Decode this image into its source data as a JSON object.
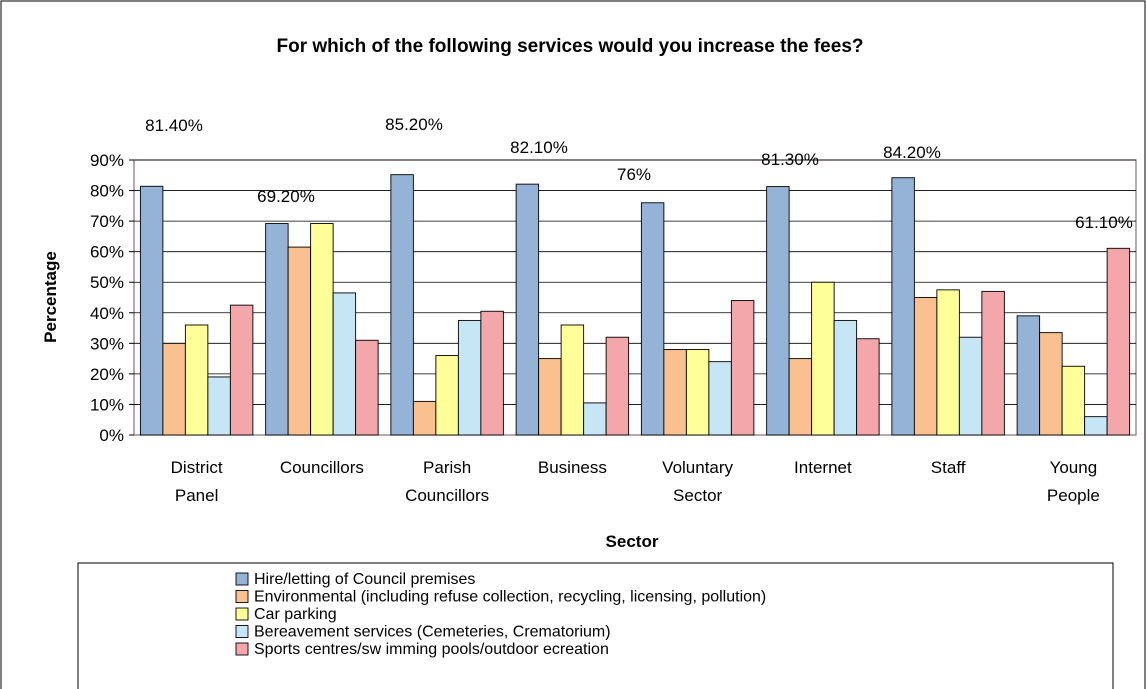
{
  "chart_data": {
    "type": "bar",
    "title": "For which of the following services would you increase the fees?",
    "xlabel": "Sector",
    "ylabel": "Percentage",
    "ylim": [
      0,
      90
    ],
    "ytick_step": 10,
    "ytick_labels": [
      "0%",
      "10%",
      "20%",
      "30%",
      "40%",
      "50%",
      "60%",
      "70%",
      "80%",
      "90%"
    ],
    "grid": true,
    "legend_position": "bottom",
    "categories": [
      [
        "District",
        "Panel"
      ],
      [
        "Councillors"
      ],
      [
        "Parish",
        "Councillors"
      ],
      [
        "Business"
      ],
      [
        "Voluntary",
        "Sector"
      ],
      [
        "Internet"
      ],
      [
        "Staff"
      ],
      [
        "Young",
        "People"
      ]
    ],
    "series": [
      {
        "name": "Hire/letting of Council premises",
        "color": "#95b3d7",
        "values": [
          81.4,
          69.2,
          85.2,
          82.1,
          76,
          81.3,
          84.2,
          39
        ]
      },
      {
        "name": "Environmental (including refuse collection, recycling, licensing, pollution)",
        "color": "#fac090",
        "values": [
          30,
          61.5,
          11,
          25,
          28,
          25,
          45,
          33.5
        ]
      },
      {
        "name": "Car parking",
        "color": "#ffff99",
        "values": [
          36,
          69.2,
          26,
          36,
          28,
          50,
          47.5,
          22.5
        ]
      },
      {
        "name": "Bereavement services (Cemeteries, Crematorium)",
        "color": "#c6e5f5",
        "values": [
          19,
          46.5,
          37.5,
          10.5,
          24,
          37.5,
          32,
          6
        ]
      },
      {
        "name": "Sports centres/sw imming pools/outdoor ecreation",
        "color": "#f4a7aa",
        "values": [
          42.5,
          31,
          40.5,
          32,
          44,
          31.5,
          47,
          61.1
        ]
      }
    ],
    "annotations": [
      "81.40%",
      "69.20%",
      "85.20%",
      "82.10%",
      "76%",
      "81.30%",
      "84.20%",
      "61.10%"
    ]
  }
}
